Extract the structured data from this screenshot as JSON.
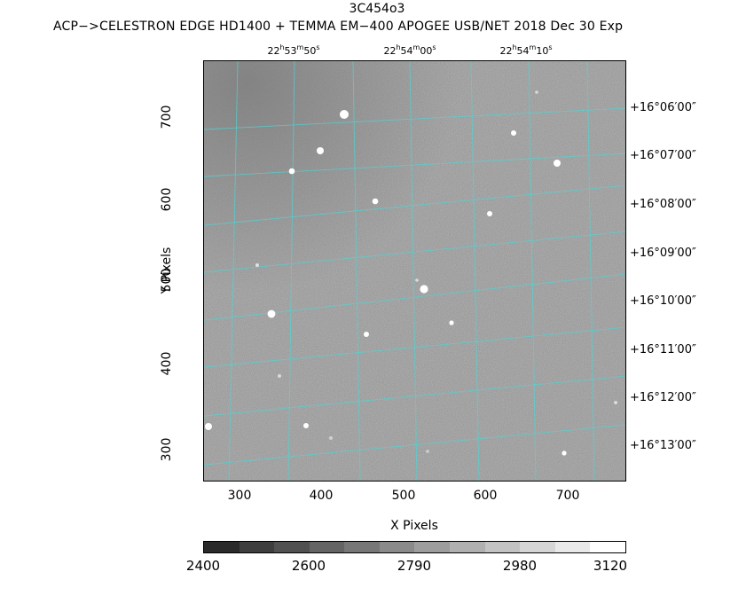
{
  "header": {
    "title": "3C454o3",
    "subtitle": "ACP−>CELESTRON EDGE HD1400 + TEMMA EM−400 APOGEE USB/NET   2018 Dec 30    Exp"
  },
  "plot": {
    "xlabel": "X Pixels",
    "ylabel": "Y Pixels",
    "xticks": [
      "300",
      "400",
      "500",
      "600",
      "700"
    ],
    "yticks": [
      "300",
      "400",
      "500",
      "600",
      "700"
    ],
    "ra_labels": [
      {
        "h": "22",
        "m": "53",
        "s": "50"
      },
      {
        "h": "22",
        "m": "54",
        "s": "00"
      },
      {
        "h": "22",
        "m": "54",
        "s": "10"
      }
    ],
    "dec_labels": [
      "+16°06′00″",
      "+16°07′00″",
      "+16°08′00″",
      "+16°09′00″",
      "+16°10′00″",
      "+16°11′00″",
      "+16°12′00″",
      "+16°13′00″"
    ],
    "grid_color": "#4fd6d6",
    "background_color": "#8e8e8e"
  },
  "colorbar": {
    "ticks": [
      "2400",
      "2600",
      "2790",
      "2980",
      "3120"
    ],
    "gradient": [
      "#2a2a2a",
      "#3e3e3e",
      "#515151",
      "#646464",
      "#777777",
      "#8a8a8a",
      "#9d9d9d",
      "#b0b0b0",
      "#c3c3c3",
      "#d6d6d6",
      "#e9e9e9",
      "#ffffff"
    ]
  }
}
